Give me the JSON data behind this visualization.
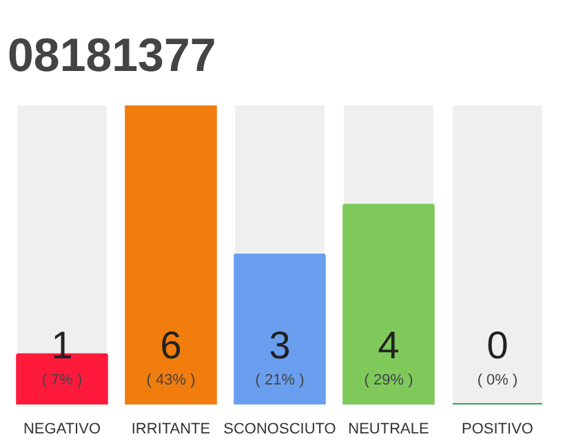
{
  "chart_data": {
    "type": "bar",
    "title": "08181377",
    "categories": [
      "NEGATIVO",
      "IRRITANTE",
      "SCONOSCIUTO",
      "NEUTRALE",
      "POSITIVO"
    ],
    "values": [
      1,
      6,
      3,
      4,
      0
    ],
    "colors": [
      "#ff1a3c",
      "#f07d0e",
      "#6a9ff0",
      "#7ec95a",
      "#2aa84a"
    ],
    "tick_labels": "x",
    "grid": false,
    "data_labels": true,
    "annotations": [
      "( 7% )",
      "( 43% )",
      "( 21% )",
      "( 29% )",
      "( 0% )"
    ]
  }
}
